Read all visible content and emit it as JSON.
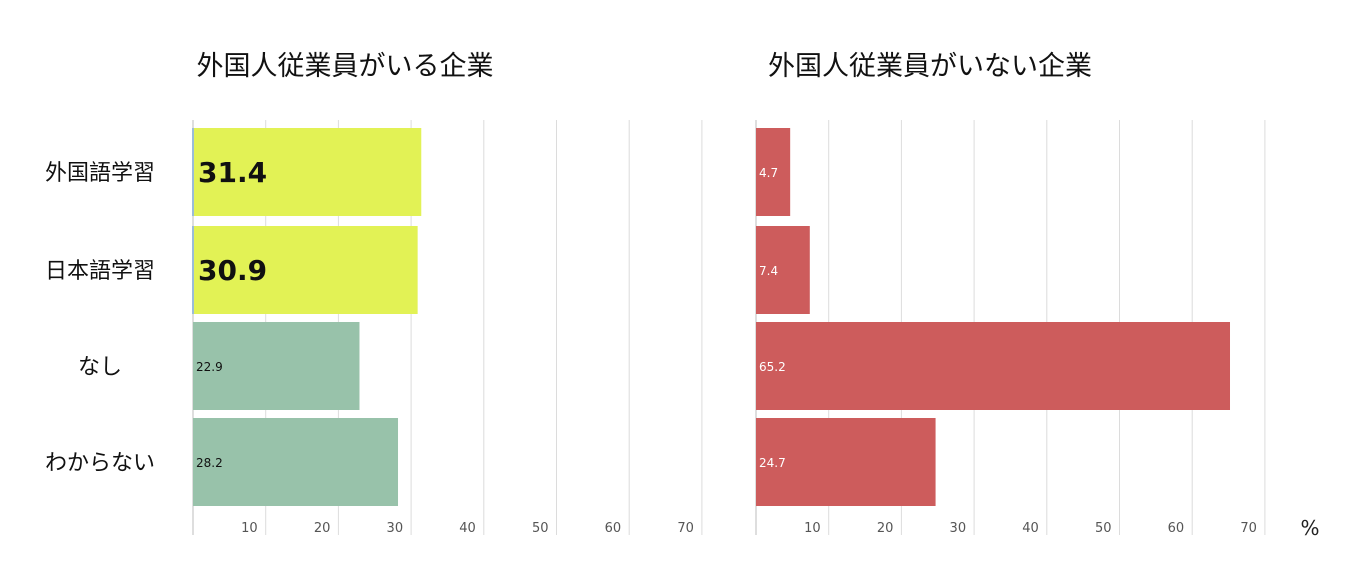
{
  "unit": "%",
  "categories": [
    "外国語学習",
    "日本語学習",
    "なし",
    "わからない"
  ],
  "xticks": [
    "10",
    "20",
    "30",
    "40",
    "50",
    "60",
    "70"
  ],
  "colors": {
    "highlight": "#e2f255",
    "neutral": "#98c2aa",
    "right": "#cd5c5c",
    "grid": "#dcdcdc",
    "axis": "#bcbcbc",
    "baseline_accent": "#9bbcd8"
  },
  "chart_data": [
    {
      "type": "bar",
      "orientation": "horizontal",
      "title": "外国人従業員がいる企業",
      "categories": [
        "外国語学習",
        "日本語学習",
        "なし",
        "わからない"
      ],
      "values": [
        31.4,
        30.9,
        22.9,
        28.2
      ],
      "value_labels": [
        "31.4",
        "30.9",
        "22.9",
        "28.2"
      ],
      "highlighted": [
        true,
        true,
        false,
        false
      ],
      "xlim": [
        0,
        70
      ],
      "xticks": [
        10,
        20,
        30,
        40,
        50,
        60,
        70
      ],
      "grid": true
    },
    {
      "type": "bar",
      "orientation": "horizontal",
      "title": "外国人従業員がいない企業",
      "categories": [
        "外国語学習",
        "日本語学習",
        "なし",
        "わからない"
      ],
      "values": [
        4.7,
        7.4,
        65.2,
        24.7
      ],
      "value_labels": [
        "4.7",
        "7.4",
        "65.2",
        "24.7"
      ],
      "highlighted": [
        false,
        false,
        false,
        false
      ],
      "xlim": [
        0,
        70
      ],
      "xticks": [
        10,
        20,
        30,
        40,
        50,
        60,
        70
      ],
      "grid": true
    }
  ]
}
